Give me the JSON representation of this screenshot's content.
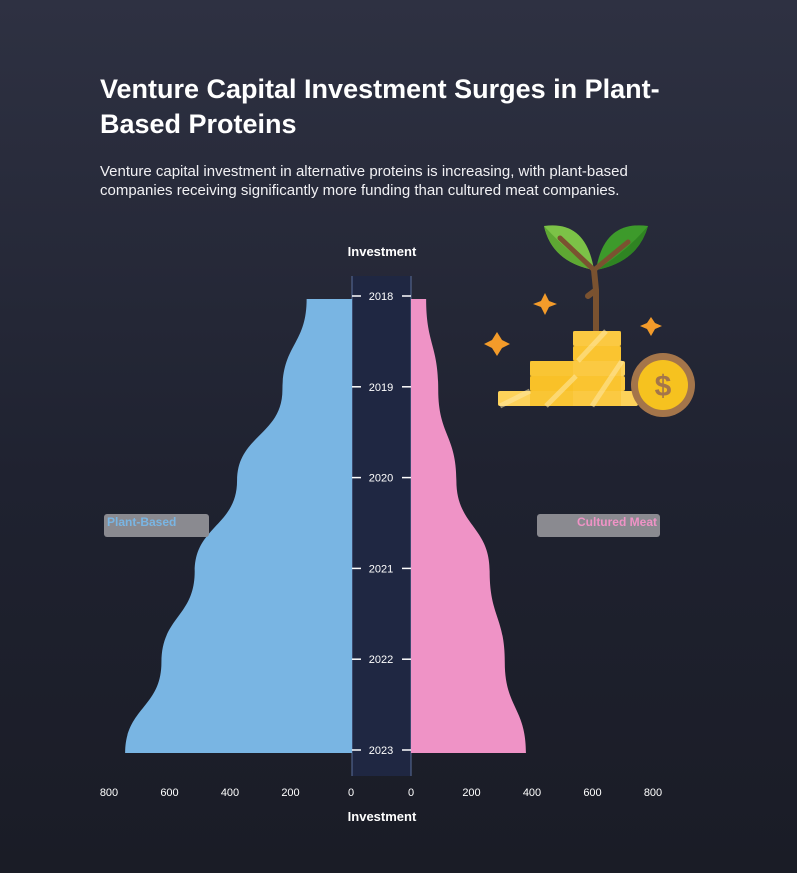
{
  "title": "Venture Capital Investment Surges in Plant-Based Proteins",
  "subtitle": "Venture capital investment in alternative proteins is increasing, with plant-based companies receiving significantly more funding than cultured meat companies.",
  "colors": {
    "plant_based": "#79b5e3",
    "cultured_meat": "#ef93c6",
    "center_band": "#1f2742",
    "legend_box": "#8a8a90"
  },
  "icon": "plant-coins-icon",
  "chart_data": {
    "type": "area",
    "orientation": "horizontal-mirrored",
    "categories": [
      "2018",
      "2019",
      "2020",
      "2021",
      "2022",
      "2023"
    ],
    "series": [
      {
        "name": "Plant-Based",
        "side": "left",
        "values": [
          150,
          230,
          380,
          520,
          630,
          750
        ]
      },
      {
        "name": "Cultured Meat",
        "side": "right",
        "values": [
          50,
          90,
          150,
          260,
          310,
          380
        ]
      }
    ],
    "xlabel_top": "Investment",
    "xlabel_bottom": "Investment",
    "xlim": [
      0,
      800
    ],
    "left_ticks": [
      "800",
      "600",
      "400",
      "200",
      "0"
    ],
    "right_ticks": [
      "0",
      "200",
      "400",
      "600",
      "800"
    ],
    "legend": [
      "Plant-Based",
      "Cultured Meat"
    ]
  }
}
